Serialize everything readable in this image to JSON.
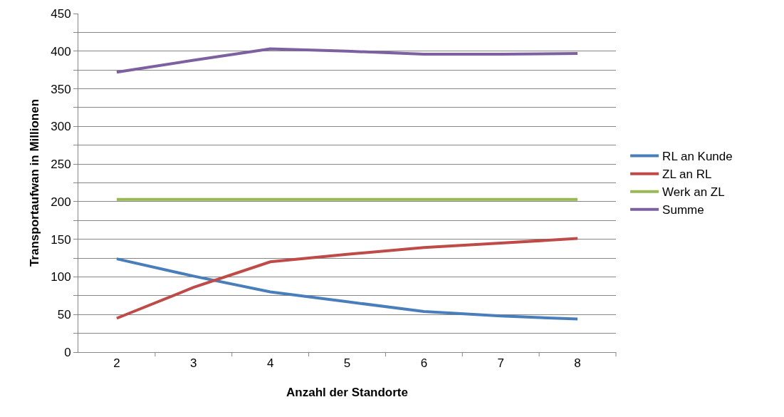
{
  "chart_data": {
    "type": "line",
    "xlabel": "Anzahl der Standorte",
    "ylabel": "Transportaufwan in Millionen",
    "categories": [
      "2",
      "3",
      "4",
      "5",
      "6",
      "7",
      "8"
    ],
    "series": [
      {
        "name": "RL an Kunde",
        "color": "#4a7ebb",
        "values": [
          124,
          101,
          80,
          67,
          54,
          48,
          44
        ]
      },
      {
        "name": "ZL an RL",
        "color": "#be4b48",
        "values": [
          45,
          86,
          120,
          130,
          139,
          145,
          151
        ]
      },
      {
        "name": "Werk an ZL",
        "color": "#98b954",
        "values": [
          203,
          203,
          203,
          203,
          203,
          203,
          203
        ]
      },
      {
        "name": "Summe",
        "color": "#7d60a0",
        "values": [
          372,
          388,
          403,
          400,
          396,
          396,
          397
        ]
      }
    ],
    "ylim": [
      0,
      450
    ],
    "yticks": [
      0,
      {
        "value": 25,
        "label": null
      },
      50,
      {
        "value": 75,
        "label": null
      },
      100,
      {
        "value": 125,
        "label": null
      },
      150,
      {
        "value": 175,
        "label": null
      },
      200,
      {
        "value": 225,
        "label": null
      },
      250,
      {
        "value": 275,
        "label": null
      },
      300,
      {
        "value": 325,
        "label": null
      },
      350,
      {
        "value": 375,
        "label": null
      },
      400,
      {
        "value": 425,
        "label": null
      },
      450
    ],
    "grid": "y",
    "legend": "right",
    "marker": "none",
    "line_style": "solid"
  }
}
